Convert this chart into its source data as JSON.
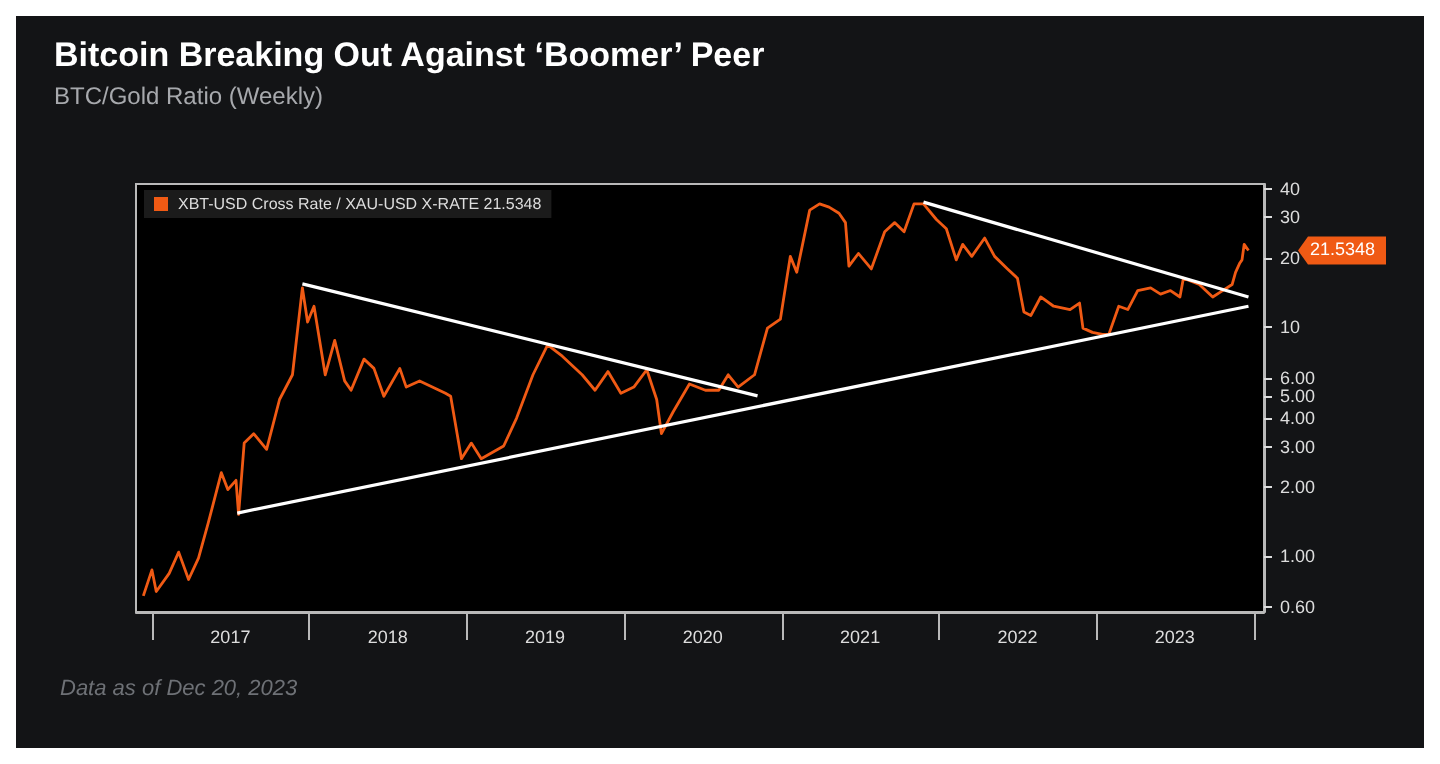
{
  "chart_data": {
    "type": "line",
    "title": "Bitcoin Breaking Out Against ‘Boomer’ Peer",
    "subtitle": "BTC/Gold Ratio (Weekly)",
    "log": "y",
    "legend": "top left",
    "x": [
      "2016-12-12",
      "2017-01-01",
      "2017-01-11",
      "2017-02-10",
      "2017-03-04",
      "2017-03-27",
      "2017-04-19",
      "2017-05-11",
      "2017-06-11",
      "2017-06-26",
      "2017-07-15",
      "2017-07-21",
      "2017-08-03",
      "2017-08-25",
      "2017-09-24",
      "2017-10-24",
      "2017-11-23",
      "2017-12-16",
      "2017-12-28",
      "2018-01-12",
      "2018-02-07",
      "2018-03-01",
      "2018-03-24",
      "2018-04-08",
      "2018-05-08",
      "2018-05-31",
      "2018-06-23",
      "2018-07-30",
      "2018-08-14",
      "2018-09-14",
      "2018-11-13",
      "2018-11-25",
      "2018-12-20",
      "2019-01-12",
      "2019-02-04",
      "2019-03-28",
      "2019-04-27",
      "2019-06-04",
      "2019-07-08",
      "2019-08-11",
      "2019-09-26",
      "2019-10-26",
      "2019-11-25",
      "2019-12-25",
      "2020-01-24",
      "2020-02-23",
      "2020-03-17",
      "2020-03-28",
      "2020-04-24",
      "2020-06-01",
      "2020-07-08",
      "2020-08-08",
      "2020-08-30",
      "2020-09-22",
      "2020-10-30",
      "2020-11-29",
      "2020-12-29",
      "2021-01-21",
      "2021-02-05",
      "2021-03-07",
      "2021-03-30",
      "2021-04-21",
      "2021-05-14",
      "2021-05-29",
      "2021-06-06",
      "2021-06-28",
      "2021-07-28",
      "2021-08-28",
      "2021-09-20",
      "2021-10-12",
      "2021-11-04",
      "2021-11-26",
      "2021-12-26",
      "2022-01-18",
      "2022-02-10",
      "2022-02-25",
      "2022-03-18",
      "2022-04-17",
      "2022-05-10",
      "2022-06-09",
      "2022-07-02",
      "2022-07-17",
      "2022-08-02",
      "2022-08-25",
      "2022-09-24",
      "2022-11-01",
      "2022-11-23",
      "2022-12-01",
      "2022-12-23",
      "2023-01-15",
      "2023-01-30",
      "2023-02-22",
      "2023-03-15",
      "2023-04-07",
      "2023-05-07",
      "2023-05-30",
      "2023-06-22",
      "2023-07-14",
      "2023-07-22",
      "2023-08-28",
      "2023-09-28",
      "2023-10-21",
      "2023-11-12",
      "2023-11-20",
      "2023-11-30",
      "2023-12-05",
      "2023-12-10",
      "2023-12-20"
    ],
    "series": [
      {
        "name": "XBT-USD Cross Rate / XAU-USD X-RATE 21.5348",
        "color": "#f05a14",
        "values": [
          0.67,
          0.87,
          0.7,
          0.84,
          1.04,
          0.79,
          0.98,
          1.38,
          2.31,
          1.95,
          2.14,
          1.52,
          3.11,
          3.42,
          2.92,
          4.82,
          6.18,
          14.8,
          10.5,
          12.3,
          6.18,
          8.73,
          5.81,
          5.29,
          7.23,
          6.59,
          4.98,
          6.59,
          5.46,
          5.81,
          5.13,
          4.98,
          2.66,
          3.11,
          2.66,
          3.02,
          4.0,
          6.18,
          8.34,
          7.45,
          6.18,
          5.29,
          6.38,
          5.13,
          5.46,
          6.5,
          4.82,
          3.42,
          4.25,
          5.63,
          5.29,
          5.29,
          6.18,
          5.46,
          6.18,
          9.87,
          10.8,
          20.3,
          17.3,
          32.3,
          34.4,
          33.3,
          31.3,
          28.5,
          18.4,
          20.9,
          17.9,
          26.0,
          28.5,
          26.0,
          34.4,
          34.4,
          29.4,
          26.8,
          19.6,
          22.9,
          20.3,
          24.4,
          20.3,
          17.9,
          16.3,
          11.6,
          11.2,
          13.5,
          12.3,
          11.9,
          12.7,
          9.87,
          9.46,
          9.27,
          9.27,
          12.3,
          11.9,
          14.4,
          14.8,
          13.9,
          14.4,
          13.5,
          16.3,
          15.3,
          13.5,
          14.4,
          15.3,
          17.3,
          19.0,
          19.6,
          22.9,
          21.5348
        ]
      },
      {
        "color": "#ffffff",
        "x": [
          "2017-12-16",
          "2020-11-06"
        ],
        "values": [
          15.4,
          5.0
        ]
      },
      {
        "color": "#ffffff",
        "x": [
          "2017-07-18",
          "2023-12-20"
        ],
        "values": [
          1.54,
          12.3
        ]
      },
      {
        "color": "#ffffff",
        "x": [
          "2021-11-26",
          "2023-12-20"
        ],
        "values": [
          35,
          13.5
        ]
      }
    ],
    "xlim": [
      "2016-11-25",
      "2024-01-25"
    ],
    "xticks": [
      {
        "value": "2017-01-01",
        "label": null
      },
      {
        "value": "2017-07-02",
        "label": "2017"
      },
      {
        "value": "2018-01-01",
        "label": null
      },
      {
        "value": "2018-07-02",
        "label": "2018"
      },
      {
        "value": "2019-01-01",
        "label": null
      },
      {
        "value": "2019-07-02",
        "label": "2019"
      },
      {
        "value": "2020-01-01",
        "label": null
      },
      {
        "value": "2020-07-02",
        "label": "2020"
      },
      {
        "value": "2021-01-01",
        "label": null
      },
      {
        "value": "2021-07-02",
        "label": "2021"
      },
      {
        "value": "2022-01-01",
        "label": null
      },
      {
        "value": "2022-07-02",
        "label": "2022"
      },
      {
        "value": "2023-01-01",
        "label": null
      },
      {
        "value": "2023-07-02",
        "label": "2023"
      },
      {
        "value": "2024-01-01",
        "label": null
      }
    ],
    "ylim": [
      0.57,
      42
    ],
    "yticks": [
      {
        "value": 0.6,
        "label": "0.60"
      },
      {
        "value": 1,
        "label": "1.00"
      },
      {
        "value": 2,
        "label": "2.00"
      },
      {
        "value": 3,
        "label": "3.00"
      },
      {
        "value": 4,
        "label": "4.00"
      },
      {
        "value": 5,
        "label": "5.00"
      },
      {
        "value": 6,
        "label": "6.00"
      },
      10,
      20,
      30,
      40
    ],
    "annotations": [
      "21.5348",
      "Data as of Dec 20, 2023"
    ]
  }
}
